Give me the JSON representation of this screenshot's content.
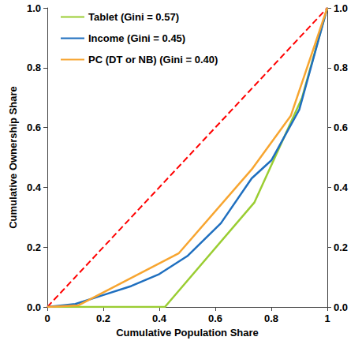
{
  "chart_data": {
    "type": "line",
    "x_label": "Cumulative Population Share",
    "y_label": "Cumulative Ownership Share",
    "xlim": [
      0,
      1
    ],
    "xticks": [
      0,
      0.2,
      0.4,
      0.6,
      0.8,
      1
    ],
    "ylim": [
      0,
      1
    ],
    "yticks": [
      {
        "value": 0,
        "label": "0.0"
      },
      {
        "value": 0.2,
        "label": "0.2"
      },
      {
        "value": 0.4,
        "label": "0.4"
      },
      {
        "value": 0.6,
        "label": "0.6"
      },
      {
        "value": 0.8,
        "label": "0.8"
      },
      {
        "value": 1,
        "label": "1.0"
      }
    ],
    "y2lim": [
      0,
      1
    ],
    "y2ticks": [
      {
        "value": 0,
        "label": "0.0"
      },
      {
        "value": 0.2,
        "label": "0.2"
      },
      {
        "value": 0.4,
        "label": "0.4"
      },
      {
        "value": 0.6,
        "label": "0.6"
      },
      {
        "value": 0.8,
        "label": "0.8"
      },
      {
        "value": 1,
        "label": "1.0"
      }
    ],
    "grid": false,
    "legend": "upper left",
    "series": [
      {
        "name": "Tablet (Gini = 0.57)",
        "color": "#9acd32",
        "line_style": "solid",
        "x": [
          0,
          0.42,
          0.74,
          0.91,
          1
        ],
        "values": [
          0,
          0,
          0.35,
          0.7,
          1
        ]
      },
      {
        "name": "Income (Gini = 0.45)",
        "color": "#1f6fbf",
        "line_style": "solid",
        "x": [
          0,
          0.1,
          0.2,
          0.3,
          0.4,
          0.5,
          0.62,
          0.73,
          0.8,
          0.9,
          1
        ],
        "values": [
          0,
          0.01,
          0.04,
          0.07,
          0.11,
          0.17,
          0.28,
          0.43,
          0.49,
          0.66,
          1
        ]
      },
      {
        "name": "PC (DT or NB) (Gini = 0.40)",
        "color": "#f7a530",
        "line_style": "solid",
        "x": [
          0,
          0.11,
          0.47,
          0.73,
          0.87,
          1
        ],
        "values": [
          0,
          0.005,
          0.18,
          0.46,
          0.64,
          1
        ]
      },
      {
        "color": "#ff0000",
        "line_style": "dashed",
        "x": [
          0,
          1
        ],
        "values": [
          0,
          1
        ]
      }
    ]
  }
}
